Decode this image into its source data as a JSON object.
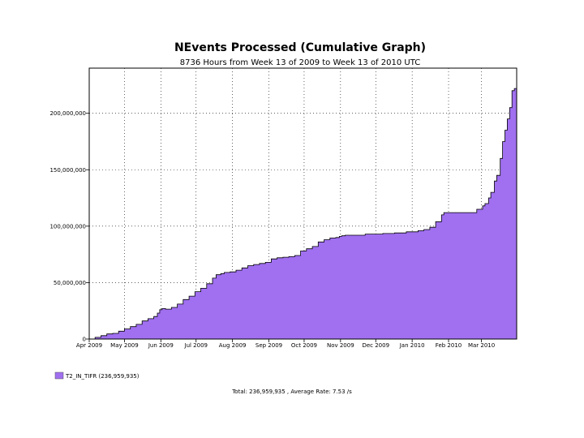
{
  "chart_data": {
    "type": "area",
    "title": "NEvents Processed (Cumulative Graph)",
    "subtitle": "8736 Hours from Week 13 of 2009 to Week 13 of 2010 UTC",
    "xlabel": "",
    "ylabel": "",
    "grid": true,
    "fill_color": "#a070f0",
    "line_color": "#000000",
    "x_range_days": [
      0,
      364
    ],
    "ylim": [
      0,
      240000000
    ],
    "y_ticks": [
      {
        "value": 0,
        "label": "0"
      },
      {
        "value": 50000000,
        "label": "50,000,000"
      },
      {
        "value": 100000000,
        "label": "100,000,000"
      },
      {
        "value": 150000000,
        "label": "150,000,000"
      },
      {
        "value": 200000000,
        "label": "200,000,000"
      }
    ],
    "x_ticks": [
      {
        "day": 0,
        "label": "Apr 2009"
      },
      {
        "day": 30,
        "label": "May 2009"
      },
      {
        "day": 61,
        "label": "Jun 2009"
      },
      {
        "day": 91,
        "label": "Jul 2009"
      },
      {
        "day": 122,
        "label": "Aug 2009"
      },
      {
        "day": 153,
        "label": "Sep 2009"
      },
      {
        "day": 183,
        "label": "Oct 2009"
      },
      {
        "day": 214,
        "label": "Nov 2009"
      },
      {
        "day": 244,
        "label": "Dec 2009"
      },
      {
        "day": 275,
        "label": "Jan 2010"
      },
      {
        "day": 306,
        "label": "Feb 2010"
      },
      {
        "day": 334,
        "label": "Mar 2010"
      }
    ],
    "series": [
      {
        "name": "T2_IN_TIFR",
        "x_days": [
          0,
          5,
          10,
          15,
          20,
          25,
          30,
          35,
          40,
          45,
          50,
          55,
          58,
          60,
          62,
          65,
          70,
          75,
          80,
          85,
          90,
          95,
          100,
          105,
          108,
          112,
          115,
          120,
          125,
          130,
          135,
          140,
          145,
          150,
          155,
          160,
          165,
          170,
          175,
          180,
          185,
          190,
          195,
          200,
          205,
          210,
          213,
          215,
          218,
          220,
          225,
          230,
          235,
          240,
          250,
          260,
          270,
          280,
          285,
          290,
          295,
          300,
          302,
          304,
          310,
          320,
          330,
          335,
          337,
          340,
          342,
          345,
          347,
          350,
          352,
          354,
          356,
          358,
          360,
          362,
          364
        ],
        "values": [
          0,
          1500000,
          3000000,
          4500000,
          5000000,
          7000000,
          9000000,
          11000000,
          13000000,
          16000000,
          18000000,
          20000000,
          23000000,
          26000000,
          27000000,
          26500000,
          28000000,
          31000000,
          35000000,
          38000000,
          42000000,
          45000000,
          49000000,
          54000000,
          57000000,
          58000000,
          59000000,
          59500000,
          61000000,
          63000000,
          65000000,
          66000000,
          67000000,
          68000000,
          71000000,
          72000000,
          72500000,
          73000000,
          74000000,
          78000000,
          80000000,
          82000000,
          86000000,
          88000000,
          89500000,
          90000000,
          91000000,
          91500000,
          92000000,
          92000000,
          92000000,
          92000000,
          93000000,
          93000000,
          93500000,
          94000000,
          95000000,
          96000000,
          97000000,
          99000000,
          104000000,
          110000000,
          112000000,
          112000000,
          112000000,
          112000000,
          115000000,
          118000000,
          120000000,
          125000000,
          130000000,
          140000000,
          145000000,
          160000000,
          175000000,
          185000000,
          195000000,
          205000000,
          220000000,
          222000000,
          226000000
        ],
        "legend_label": "T2_IN_TIFR (236,959,935)"
      }
    ],
    "footer": "Total: 236,959,935 , Average Rate: 7.53 /s"
  }
}
